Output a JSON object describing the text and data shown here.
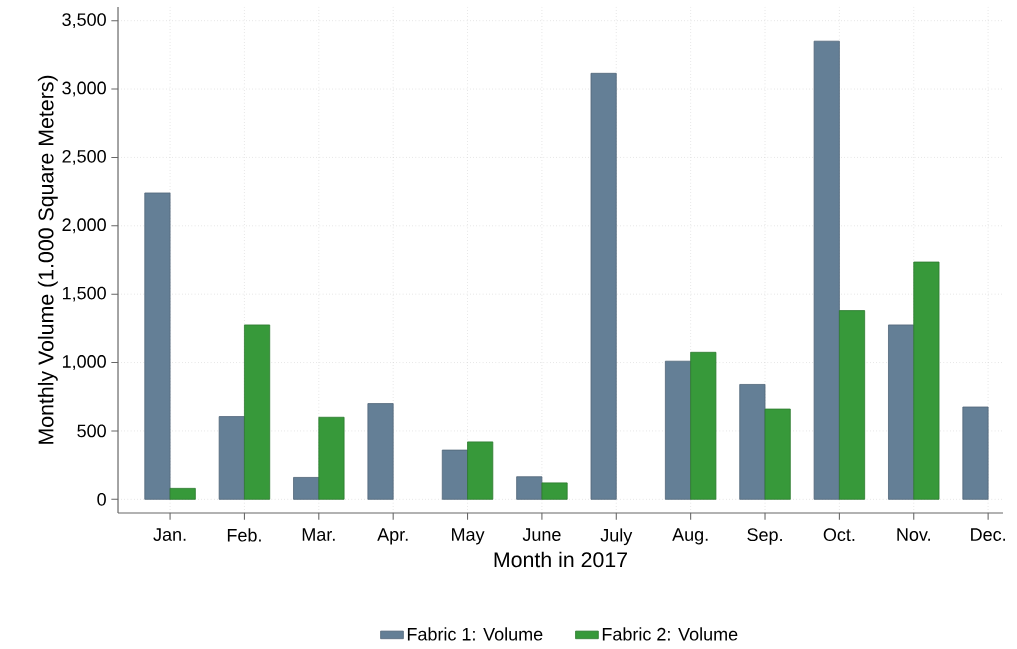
{
  "chart_data": {
    "type": "bar",
    "xlabel": "Month in 2017",
    "ylabel": "Monthly Volume (1.000 Square Meters)",
    "categories": [
      "Jan.",
      "Feb.",
      "Mar.",
      "Apr.",
      "May",
      "June",
      "July",
      "Aug.",
      "Sep.",
      "Oct.",
      "Nov.",
      "Dec."
    ],
    "series": [
      {
        "name": "Fabric 1: Volume",
        "color": "#647f96",
        "values": [
          2240,
          605,
          160,
          700,
          360,
          165,
          3115,
          1010,
          840,
          3350,
          1275,
          675
        ]
      },
      {
        "name": "Fabric 2: Volume",
        "color": "#37993a",
        "values": [
          80,
          1275,
          600,
          null,
          420,
          120,
          null,
          1075,
          660,
          1380,
          1735,
          null
        ]
      }
    ],
    "ylim": [
      -100,
      3600
    ],
    "yticks": [
      0,
      500,
      {
        "value": 1000,
        "label": "1,000"
      },
      {
        "value": 1500,
        "label": "1,500"
      },
      {
        "value": 2000,
        "label": "2,000"
      },
      {
        "value": 2500,
        "label": "2,500"
      },
      {
        "value": 3000,
        "label": "3,000"
      },
      {
        "value": 3500,
        "label": "3,500"
      }
    ],
    "grid": true,
    "legend": "bottom"
  }
}
